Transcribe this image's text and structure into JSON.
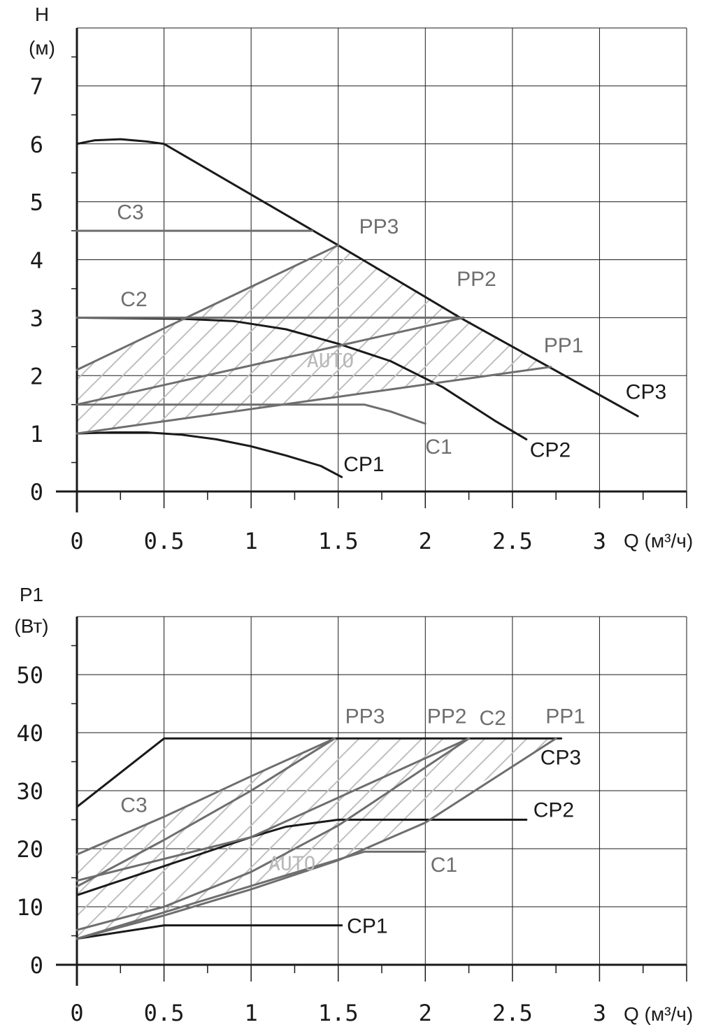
{
  "colors": {
    "black_curve": "#1a1a1a",
    "gray_curve": "#6e6e6e",
    "hatch": "#bfbfbf",
    "auto_label": "#b8b8b8"
  },
  "chart_data": [
    {
      "type": "line",
      "ylabel": "H",
      "yunit": "(м)",
      "xlabel": "Q (м³/ч)",
      "xlim": [
        0,
        3.5
      ],
      "ylim": [
        0,
        8
      ],
      "xticks": [
        0,
        0.5,
        1,
        1.5,
        2,
        2.5,
        3
      ],
      "xtick_labels": [
        "0",
        "0.5",
        "1",
        "1.5",
        "2",
        "2.5",
        "3"
      ],
      "yticks": [
        0,
        1,
        2,
        3,
        4,
        5,
        6,
        7
      ],
      "ytick_labels": [
        "0",
        "1",
        "2",
        "3",
        "4",
        "5",
        "6",
        "7"
      ],
      "grid": true,
      "region_label": "AUTO",
      "region": [
        [
          0,
          1
        ],
        [
          0,
          2.1
        ],
        [
          1.5,
          4.25
        ],
        [
          2.22,
          3
        ],
        [
          2.72,
          2.15
        ]
      ],
      "series": [
        {
          "name": "CP1",
          "color": "black",
          "x": [
            0,
            0.2,
            0.4,
            0.6,
            0.8,
            1.0,
            1.2,
            1.4,
            1.52
          ],
          "y": [
            1.0,
            1.02,
            1.02,
            0.98,
            0.9,
            0.78,
            0.62,
            0.44,
            0.25
          ]
        },
        {
          "name": "CP2",
          "color": "black",
          "x": [
            0,
            0.6,
            0.9,
            1.2,
            1.5,
            1.8,
            2.1,
            2.4,
            2.58
          ],
          "y": [
            3.0,
            2.98,
            2.94,
            2.8,
            2.55,
            2.25,
            1.8,
            1.22,
            0.9
          ]
        },
        {
          "name": "CP3",
          "color": "black",
          "x": [
            0,
            0.1,
            0.25,
            0.4,
            0.5,
            1.5,
            2.2,
            3.22
          ],
          "y": [
            6.0,
            6.06,
            6.08,
            6.04,
            6.0,
            4.25,
            3.0,
            1.3
          ]
        },
        {
          "name": "C1",
          "color": "gray",
          "x": [
            0,
            1.65,
            1.8,
            2.0
          ],
          "y": [
            1.5,
            1.5,
            1.38,
            1.17
          ]
        },
        {
          "name": "C2",
          "color": "gray",
          "x": [
            0,
            2.22
          ],
          "y": [
            3.0,
            3.0
          ]
        },
        {
          "name": "C3",
          "color": "gray",
          "x": [
            0,
            1.35
          ],
          "y": [
            4.5,
            4.5
          ]
        },
        {
          "name": "PP1",
          "color": "gray",
          "x": [
            0,
            2.72
          ],
          "y": [
            1.0,
            2.15
          ]
        },
        {
          "name": "PP2",
          "color": "gray",
          "x": [
            0,
            2.22
          ],
          "y": [
            1.5,
            3.0
          ]
        },
        {
          "name": "PP3",
          "color": "gray",
          "x": [
            0,
            1.5
          ],
          "y": [
            2.1,
            4.25
          ]
        }
      ],
      "labels": [
        {
          "text": "CP1",
          "x": 1.53,
          "y": 0.35,
          "color": "black"
        },
        {
          "text": "CP2",
          "x": 2.6,
          "y": 0.6,
          "color": "black"
        },
        {
          "text": "CP3",
          "x": 3.15,
          "y": 1.6,
          "color": "black"
        },
        {
          "text": "C1",
          "x": 2.0,
          "y": 0.65,
          "color": "gray"
        },
        {
          "text": "C2",
          "x": 0.25,
          "y": 3.2,
          "color": "gray"
        },
        {
          "text": "C3",
          "x": 0.23,
          "y": 4.7,
          "color": "gray"
        },
        {
          "text": "PP1",
          "x": 2.68,
          "y": 2.4,
          "color": "gray"
        },
        {
          "text": "PP2",
          "x": 2.18,
          "y": 3.55,
          "color": "gray"
        },
        {
          "text": "PP3",
          "x": 1.62,
          "y": 4.45,
          "color": "gray"
        },
        {
          "text": "AUTO",
          "x": 1.32,
          "y": 2.15,
          "color": "auto"
        }
      ]
    },
    {
      "type": "line",
      "ylabel": "P1",
      "yunit": "(Вт)",
      "xlabel": "Q (м³/ч)",
      "xlim": [
        0,
        3.5
      ],
      "ylim": [
        0,
        60
      ],
      "xticks": [
        0,
        0.5,
        1,
        1.5,
        2,
        2.5,
        3
      ],
      "xtick_labels": [
        "0",
        "0.5",
        "1",
        "1.5",
        "2",
        "2.5",
        "3"
      ],
      "yticks": [
        0,
        10,
        20,
        30,
        40,
        50
      ],
      "ytick_labels": [
        "0",
        "10",
        "20",
        "30",
        "40",
        "50"
      ],
      "grid": true,
      "region_label": "AUTO",
      "region": [
        [
          0,
          4.5
        ],
        [
          0,
          19
        ],
        [
          1.48,
          39
        ],
        [
          2.25,
          39
        ],
        [
          2.75,
          39
        ],
        [
          1.65,
          19.5
        ]
      ],
      "series": [
        {
          "name": "CP1",
          "color": "black",
          "x": [
            0,
            0.5,
            1.52
          ],
          "y": [
            4.5,
            6.8,
            6.8
          ]
        },
        {
          "name": "CP2",
          "color": "black",
          "x": [
            0,
            0.5,
            0.8,
            1.0,
            1.2,
            1.5,
            2.58
          ],
          "y": [
            12,
            17,
            20,
            22,
            23.8,
            25,
            25
          ]
        },
        {
          "name": "CP3",
          "color": "black",
          "x": [
            0,
            0.5,
            2.78
          ],
          "y": [
            27.2,
            39,
            39
          ]
        },
        {
          "name": "C1",
          "color": "gray",
          "x": [
            0,
            1.65,
            2.0
          ],
          "y": [
            4.5,
            19.5,
            19.5
          ]
        },
        {
          "name": "C2",
          "color": "gray",
          "x": [
            0,
            1.0,
            2.25
          ],
          "y": [
            14.5,
            22,
            39
          ]
        },
        {
          "name": "C3",
          "color": "gray",
          "x": [
            0,
            0.5,
            1.0,
            1.48
          ],
          "y": [
            19,
            25.5,
            32.5,
            39
          ]
        },
        {
          "name": "PP1",
          "color": "gray",
          "x": [
            0,
            0.5,
            1.0,
            1.5,
            2.0,
            2.75
          ],
          "y": [
            4.5,
            8.5,
            13,
            18,
            24.5,
            39
          ]
        },
        {
          "name": "PP2",
          "color": "gray",
          "x": [
            0,
            0.5,
            1.0,
            1.5,
            2.25
          ],
          "y": [
            6,
            10,
            16,
            24,
            39
          ]
        },
        {
          "name": "PP3",
          "color": "gray",
          "x": [
            0,
            0.5,
            1.0,
            1.48
          ],
          "y": [
            13.5,
            21.5,
            30,
            39
          ]
        }
      ],
      "labels": [
        {
          "text": "CP1",
          "x": 1.55,
          "y": 5.5,
          "color": "black"
        },
        {
          "text": "CP2",
          "x": 2.62,
          "y": 25.5,
          "color": "black"
        },
        {
          "text": "CP3",
          "x": 2.66,
          "y": 34.5,
          "color": "black"
        },
        {
          "text": "C1",
          "x": 2.03,
          "y": 16,
          "color": "gray"
        },
        {
          "text": "C2",
          "x": 2.31,
          "y": 41.3,
          "color": "gray"
        },
        {
          "text": "C3",
          "x": 0.25,
          "y": 26.3,
          "color": "gray"
        },
        {
          "text": "PP1",
          "x": 2.69,
          "y": 41.6,
          "color": "gray"
        },
        {
          "text": "PP2",
          "x": 2.01,
          "y": 41.6,
          "color": "gray"
        },
        {
          "text": "PP3",
          "x": 1.54,
          "y": 41.6,
          "color": "gray"
        },
        {
          "text": "AUTO",
          "x": 1.1,
          "y": 16.3,
          "color": "auto"
        }
      ]
    }
  ]
}
